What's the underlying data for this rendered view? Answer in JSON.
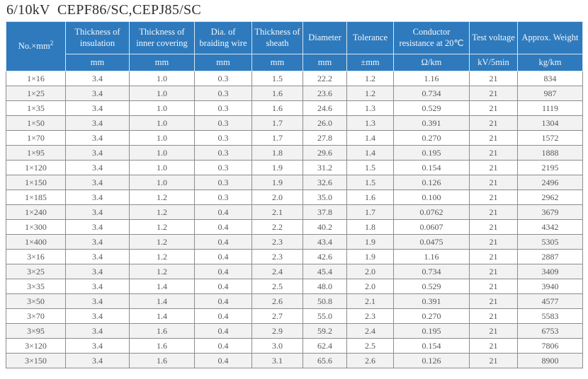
{
  "title": "6/10kV  CEPF86/SC,CEPJ85/SC",
  "colors": {
    "header_bg": "#2e7abd",
    "header_text": "#f4f8fc",
    "row_alt_bg": "#f2f2f2",
    "data_text": "#575757",
    "grid_line": "#8c8c8c"
  },
  "chart_data": {
    "type": "table",
    "title": "6/10kV  CEPF86/SC,CEPJ85/SC",
    "columns": [
      {
        "label": "No.×mm",
        "sup": "2",
        "unit": ""
      },
      {
        "label": "Thickness of insulation",
        "unit": "mm"
      },
      {
        "label": "Thickness of inner covering",
        "unit": "mm"
      },
      {
        "label": "Dia. of braiding wire",
        "unit": "mm"
      },
      {
        "label": "Thickness of sheath",
        "unit": "mm"
      },
      {
        "label": "Diameter",
        "unit": "mm"
      },
      {
        "label": "Tolerance",
        "unit": "±mm"
      },
      {
        "label": "Conductor resistance at 20℃",
        "unit": "Ω/km"
      },
      {
        "label": "Test voltage",
        "unit": "kV/5min"
      },
      {
        "label": "Approx. Weight",
        "unit": "kg/km"
      }
    ],
    "rows": [
      [
        "1×16",
        "3.4",
        "1.0",
        "0.3",
        "1.5",
        "22.2",
        "1.2",
        "1.16",
        "21",
        "834"
      ],
      [
        "1×25",
        "3.4",
        "1.0",
        "0.3",
        "1.6",
        "23.6",
        "1.2",
        "0.734",
        "21",
        "987"
      ],
      [
        "1×35",
        "3.4",
        "1.0",
        "0.3",
        "1.6",
        "24.6",
        "1.3",
        "0.529",
        "21",
        "1119"
      ],
      [
        "1×50",
        "3.4",
        "1.0",
        "0.3",
        "1.7",
        "26.0",
        "1.3",
        "0.391",
        "21",
        "1304"
      ],
      [
        "1×70",
        "3.4",
        "1.0",
        "0.3",
        "1.7",
        "27.8",
        "1.4",
        "0.270",
        "21",
        "1572"
      ],
      [
        "1×95",
        "3.4",
        "1.0",
        "0.3",
        "1.8",
        "29.6",
        "1.4",
        "0.195",
        "21",
        "1888"
      ],
      [
        "1×120",
        "3.4",
        "1.0",
        "0.3",
        "1.9",
        "31.2",
        "1.5",
        "0.154",
        "21",
        "2195"
      ],
      [
        "1×150",
        "3.4",
        "1.0",
        "0.3",
        "1.9",
        "32.6",
        "1.5",
        "0.126",
        "21",
        "2496"
      ],
      [
        "1×185",
        "3.4",
        "1.2",
        "0.3",
        "2.0",
        "35.0",
        "1.6",
        "0.100",
        "21",
        "2962"
      ],
      [
        "1×240",
        "3.4",
        "1.2",
        "0.4",
        "2.1",
        "37.8",
        "1.7",
        "0.0762",
        "21",
        "3679"
      ],
      [
        "1×300",
        "3.4",
        "1.2",
        "0.4",
        "2.2",
        "40.2",
        "1.8",
        "0.0607",
        "21",
        "4342"
      ],
      [
        "1×400",
        "3.4",
        "1.2",
        "0.4",
        "2.3",
        "43.4",
        "1.9",
        "0.0475",
        "21",
        "5305"
      ],
      [
        "3×16",
        "3.4",
        "1.2",
        "0.4",
        "2.3",
        "42.6",
        "1.9",
        "1.16",
        "21",
        "2887"
      ],
      [
        "3×25",
        "3.4",
        "1.2",
        "0.4",
        "2.4",
        "45.4",
        "2.0",
        "0.734",
        "21",
        "3409"
      ],
      [
        "3×35",
        "3.4",
        "1.4",
        "0.4",
        "2.5",
        "48.0",
        "2.0",
        "0.529",
        "21",
        "3940"
      ],
      [
        "3×50",
        "3.4",
        "1.4",
        "0.4",
        "2.6",
        "50.8",
        "2.1",
        "0.391",
        "21",
        "4577"
      ],
      [
        "3×70",
        "3.4",
        "1.4",
        "0.4",
        "2.7",
        "55.0",
        "2.3",
        "0.270",
        "21",
        "5583"
      ],
      [
        "3×95",
        "3.4",
        "1.6",
        "0.4",
        "2.9",
        "59.2",
        "2.4",
        "0.195",
        "21",
        "6753"
      ],
      [
        "3×120",
        "3.4",
        "1.6",
        "0.4",
        "3.0",
        "62.4",
        "2.5",
        "0.154",
        "21",
        "7806"
      ],
      [
        "3×150",
        "3.4",
        "1.6",
        "0.4",
        "3.1",
        "65.6",
        "2.6",
        "0.126",
        "21",
        "8900"
      ]
    ]
  }
}
